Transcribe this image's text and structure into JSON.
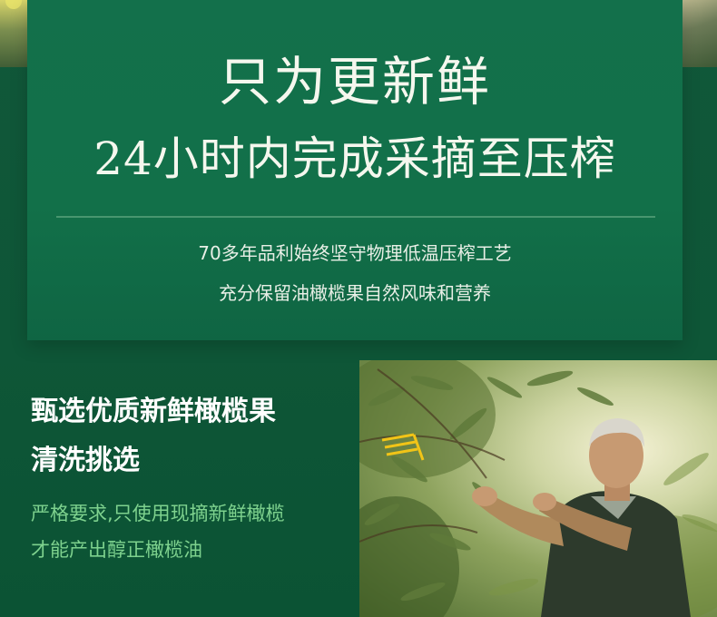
{
  "header": {
    "title_line1": "只为更新鲜",
    "title_line2": "24小时内完成采摘至压榨",
    "desc_line1": "70多年品利始终坚守物理低温压榨工艺",
    "desc_line2": "充分保留油橄榄果自然风味和营养"
  },
  "feature": {
    "heading_line1": "甄选优质新鲜橄榄果",
    "heading_line2": "清洗挑选",
    "desc_line1": "严格要求,只使用现摘新鲜橄榄",
    "desc_line2": "才能产出醇正橄榄油"
  },
  "colors": {
    "background": "#0f5a3a",
    "panel": "#127049",
    "title_text": "#f5f7ee",
    "accent_text": "#7ed28e"
  }
}
